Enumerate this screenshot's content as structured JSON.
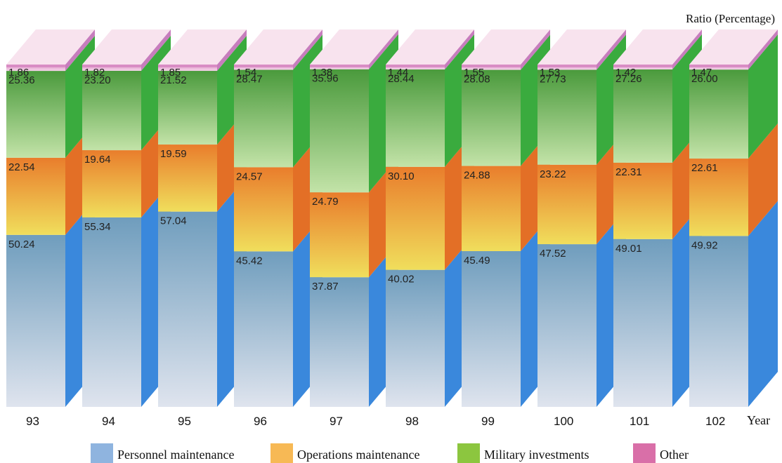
{
  "chart_data": {
    "type": "bar",
    "stacked": true,
    "style": "3d",
    "ylabel": "Ratio (Percentage)",
    "xlabel": "Year",
    "categories": [
      "93",
      "94",
      "95",
      "96",
      "97",
      "98",
      "99",
      "100",
      "101",
      "102"
    ],
    "ylim": [
      0,
      100
    ],
    "legend_position": "bottom",
    "series": [
      {
        "name": "Personnel maintenance",
        "color": "#8fb4df",
        "values": [
          50.24,
          55.34,
          57.04,
          45.42,
          37.87,
          40.02,
          45.49,
          47.52,
          49.01,
          49.92
        ]
      },
      {
        "name": "Operations maintenance",
        "color": "#f7b955",
        "values": [
          22.54,
          19.64,
          19.59,
          24.57,
          24.79,
          30.1,
          24.88,
          23.22,
          22.31,
          22.61
        ]
      },
      {
        "name": "Military investments",
        "color": "#8cc63f",
        "values": [
          25.36,
          23.2,
          21.52,
          28.47,
          35.96,
          28.44,
          28.08,
          27.73,
          27.26,
          26.0
        ]
      },
      {
        "name": "Other",
        "color": "#d96fa8",
        "values": [
          1.86,
          1.82,
          1.85,
          1.54,
          1.38,
          1.44,
          1.55,
          1.53,
          1.42,
          1.47
        ]
      }
    ]
  }
}
